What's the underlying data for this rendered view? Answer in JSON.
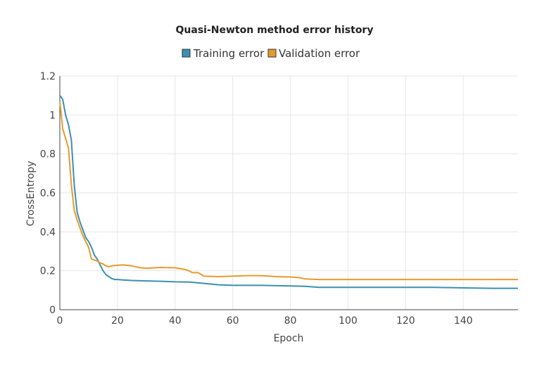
{
  "chart_data": {
    "type": "line",
    "title": "Quasi-Newton method error history",
    "xlabel": "Epoch",
    "ylabel": "CrossEntropy",
    "xlim": [
      0,
      159
    ],
    "ylim": [
      0,
      1.2
    ],
    "xticks": [
      0,
      20,
      40,
      60,
      80,
      100,
      120,
      140
    ],
    "yticks": [
      0,
      0.2,
      0.4,
      0.6,
      0.8,
      1,
      1.2
    ],
    "grid": true,
    "legend_position": "top-center",
    "series": [
      {
        "name": "Training error",
        "color": "#3d8fb0",
        "x": [
          0,
          1,
          2,
          3,
          4,
          5,
          6,
          7,
          8,
          9,
          10,
          11,
          12,
          13,
          14,
          15,
          16,
          17,
          18,
          19,
          20,
          22,
          25,
          30,
          35,
          40,
          45,
          50,
          55,
          60,
          70,
          80,
          85,
          90,
          100,
          110,
          120,
          130,
          140,
          150,
          159
        ],
        "y": [
          1.1,
          1.08,
          1.0,
          0.95,
          0.87,
          0.64,
          0.5,
          0.45,
          0.41,
          0.37,
          0.35,
          0.32,
          0.28,
          0.26,
          0.23,
          0.2,
          0.18,
          0.17,
          0.16,
          0.155,
          0.155,
          0.153,
          0.15,
          0.148,
          0.146,
          0.143,
          0.142,
          0.135,
          0.128,
          0.125,
          0.125,
          0.122,
          0.12,
          0.115,
          0.115,
          0.115,
          0.115,
          0.115,
          0.112,
          0.11,
          0.11
        ]
      },
      {
        "name": "Validation error",
        "color": "#e69a2e",
        "x": [
          0,
          1,
          2,
          3,
          4,
          5,
          6,
          7,
          8,
          9,
          10,
          11,
          12,
          13,
          14,
          15,
          16,
          17,
          18,
          20,
          22,
          25,
          28,
          30,
          35,
          40,
          44,
          46,
          48,
          50,
          55,
          60,
          65,
          70,
          75,
          80,
          83,
          85,
          90,
          100,
          110,
          120,
          130,
          140,
          150,
          159
        ],
        "y": [
          1.07,
          0.93,
          0.88,
          0.83,
          0.64,
          0.51,
          0.46,
          0.42,
          0.38,
          0.35,
          0.32,
          0.26,
          0.255,
          0.25,
          0.24,
          0.235,
          0.225,
          0.22,
          0.225,
          0.228,
          0.23,
          0.225,
          0.215,
          0.213,
          0.217,
          0.215,
          0.205,
          0.19,
          0.19,
          0.172,
          0.17,
          0.172,
          0.175,
          0.175,
          0.17,
          0.168,
          0.165,
          0.158,
          0.155,
          0.155,
          0.155,
          0.155,
          0.155,
          0.155,
          0.155,
          0.155
        ]
      }
    ]
  }
}
